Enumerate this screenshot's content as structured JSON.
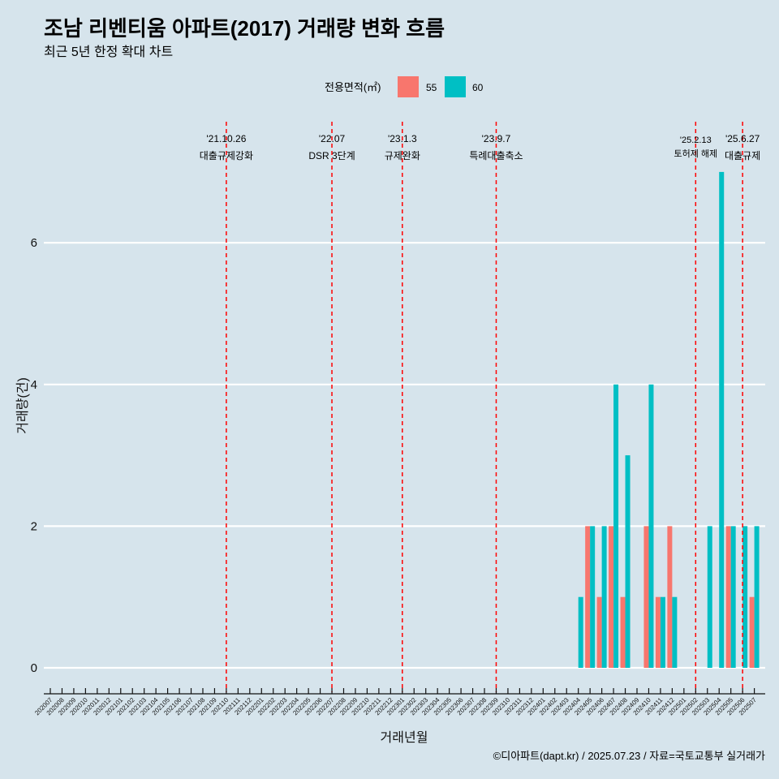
{
  "chart_data": {
    "type": "bar",
    "title": "조남 리벤티움 아파트(2017) 거래량 변화 흐름",
    "subtitle": "최근 5년 한정 확대 차트",
    "xlabel": "거래년월",
    "ylabel": "거래량(건)",
    "caption": "©디아파트(dapt.kr) / 2025.07.23 / 자료=국토교통부 실거래가",
    "legend_title": "전용면적(㎡)",
    "legend_position": "top",
    "grid": true,
    "ylim": [
      -0.35,
      7.3
    ],
    "yticks": [
      0,
      2,
      4,
      6
    ],
    "categories": [
      "202007",
      "202008",
      "202009",
      "202010",
      "202011",
      "202012",
      "202101",
      "202102",
      "202103",
      "202104",
      "202105",
      "202106",
      "202107",
      "202108",
      "202109",
      "202110",
      "202111",
      "202112",
      "202201",
      "202202",
      "202203",
      "202204",
      "202205",
      "202206",
      "202207",
      "202208",
      "202209",
      "202210",
      "202211",
      "202212",
      "202301",
      "202302",
      "202303",
      "202304",
      "202305",
      "202306",
      "202307",
      "202308",
      "202309",
      "202310",
      "202311",
      "202312",
      "202401",
      "202402",
      "202403",
      "202404",
      "202405",
      "202406",
      "202407",
      "202408",
      "202409",
      "202410",
      "202411",
      "202412",
      "202501",
      "202502",
      "202503",
      "202504",
      "202505",
      "202506",
      "202507"
    ],
    "series": [
      {
        "name": "55",
        "color": "#f8766d",
        "values": [
          0,
          0,
          0,
          0,
          0,
          0,
          0,
          0,
          0,
          0,
          0,
          0,
          0,
          0,
          0,
          0,
          0,
          0,
          0,
          0,
          0,
          0,
          0,
          0,
          0,
          0,
          0,
          0,
          0,
          0,
          0,
          0,
          0,
          0,
          0,
          0,
          0,
          0,
          0,
          0,
          0,
          0,
          0,
          0,
          0,
          0,
          2,
          1,
          2,
          1,
          0,
          2,
          1,
          2,
          0,
          0,
          0,
          0,
          2,
          0,
          1
        ]
      },
      {
        "name": "60",
        "color": "#00bfc4",
        "values": [
          0,
          0,
          0,
          0,
          0,
          0,
          0,
          0,
          0,
          0,
          0,
          0,
          0,
          0,
          0,
          0,
          0,
          0,
          0,
          0,
          0,
          0,
          0,
          0,
          0,
          0,
          0,
          0,
          0,
          0,
          0,
          0,
          0,
          0,
          0,
          0,
          0,
          0,
          0,
          0,
          0,
          0,
          0,
          0,
          0,
          1,
          2,
          2,
          4,
          3,
          0,
          4,
          1,
          1,
          0,
          0,
          2,
          7,
          2,
          2,
          2
        ]
      }
    ],
    "events": [
      {
        "x": "202110",
        "date": "'21.10.26",
        "label": "대출규제강화",
        "small": false
      },
      {
        "x": "202207",
        "date": "'22.07",
        "label": "DSR 3단계",
        "small": false
      },
      {
        "x": "202301",
        "date": "'23.1.3",
        "label": "규제완화",
        "small": false
      },
      {
        "x": "202309",
        "date": "'23.9.7",
        "label": "특례대출축소",
        "small": false
      },
      {
        "x": "202502",
        "date": "'25.2.13",
        "label": "토허제 해제",
        "small": true
      },
      {
        "x": "202506",
        "date": "'25.6.27",
        "label": "대출규제",
        "small": false
      }
    ]
  }
}
